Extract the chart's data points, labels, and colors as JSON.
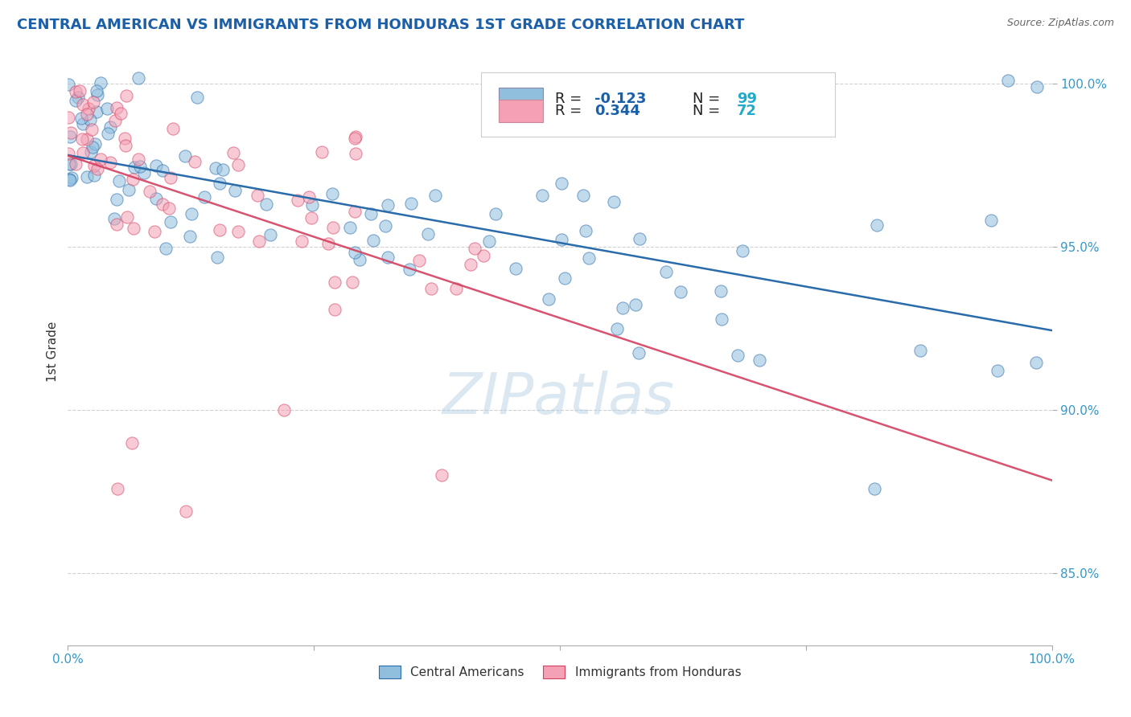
{
  "title": "CENTRAL AMERICAN VS IMMIGRANTS FROM HONDURAS 1ST GRADE CORRELATION CHART",
  "source_text": "Source: ZipAtlas.com",
  "ylabel": "1st Grade",
  "xmin": 0.0,
  "xmax": 1.0,
  "ymin": 0.828,
  "ymax": 1.008,
  "yticks": [
    0.85,
    0.9,
    0.95,
    1.0
  ],
  "ytick_labels": [
    "85.0%",
    "90.0%",
    "95.0%",
    "100.0%"
  ],
  "color_blue": "#90bfde",
  "color_pink": "#f4a0b5",
  "color_blue_line": "#2a6baa",
  "color_pink_line": "#d44060",
  "color_tick": "#3399cc",
  "watermark_text": "ZIPatlas",
  "legend_r1_val": "-0.123",
  "legend_n1_val": "99",
  "legend_r2_val": "0.344",
  "legend_n2_val": "72"
}
